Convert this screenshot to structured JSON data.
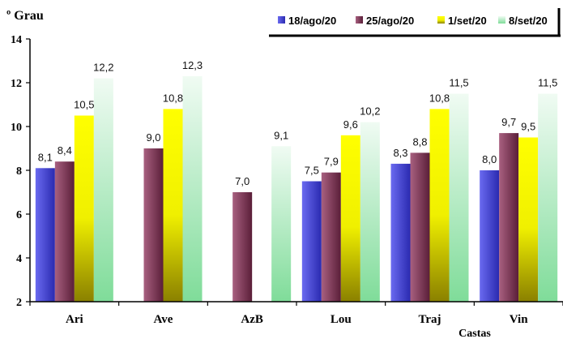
{
  "chart_data": {
    "type": "bar",
    "ylabel": "º Grau",
    "xlabel": "Castas",
    "ylim": [
      2,
      14
    ],
    "yticks": [
      2,
      4,
      6,
      8,
      10,
      12,
      14
    ],
    "grid": false,
    "legend_position": "top-right",
    "categories": [
      "Ari",
      "Ave",
      "AzB",
      "Lou",
      "Traj",
      "Vin"
    ],
    "series": [
      {
        "name": "18/ago/20",
        "color": "#3b3bd0",
        "values": [
          8.1,
          null,
          null,
          7.5,
          8.3,
          8.0
        ],
        "labels": [
          "8,1",
          null,
          null,
          "7,5",
          "8,3",
          "8,0"
        ]
      },
      {
        "name": "25/ago/20",
        "color": "#8a3a5c",
        "values": [
          8.4,
          9.0,
          7.0,
          7.9,
          8.8,
          9.7
        ],
        "labels": [
          "8,4",
          "9,0",
          "7,0",
          "7,9",
          "8,8",
          "9,7"
        ]
      },
      {
        "name": "1/set/20",
        "color": "#f2f200",
        "values": [
          10.5,
          10.8,
          null,
          9.6,
          10.8,
          9.5
        ],
        "labels": [
          "10,5",
          "10,8",
          null,
          "9,6",
          "10,8",
          "9,5"
        ]
      },
      {
        "name": "8/set/20",
        "color": "#8fe0a8",
        "values": [
          12.2,
          12.3,
          9.1,
          10.2,
          11.5,
          11.5
        ],
        "labels": [
          "12,2",
          "12,3",
          "9,1",
          "10,2",
          "11,5",
          "11,5"
        ]
      }
    ]
  }
}
